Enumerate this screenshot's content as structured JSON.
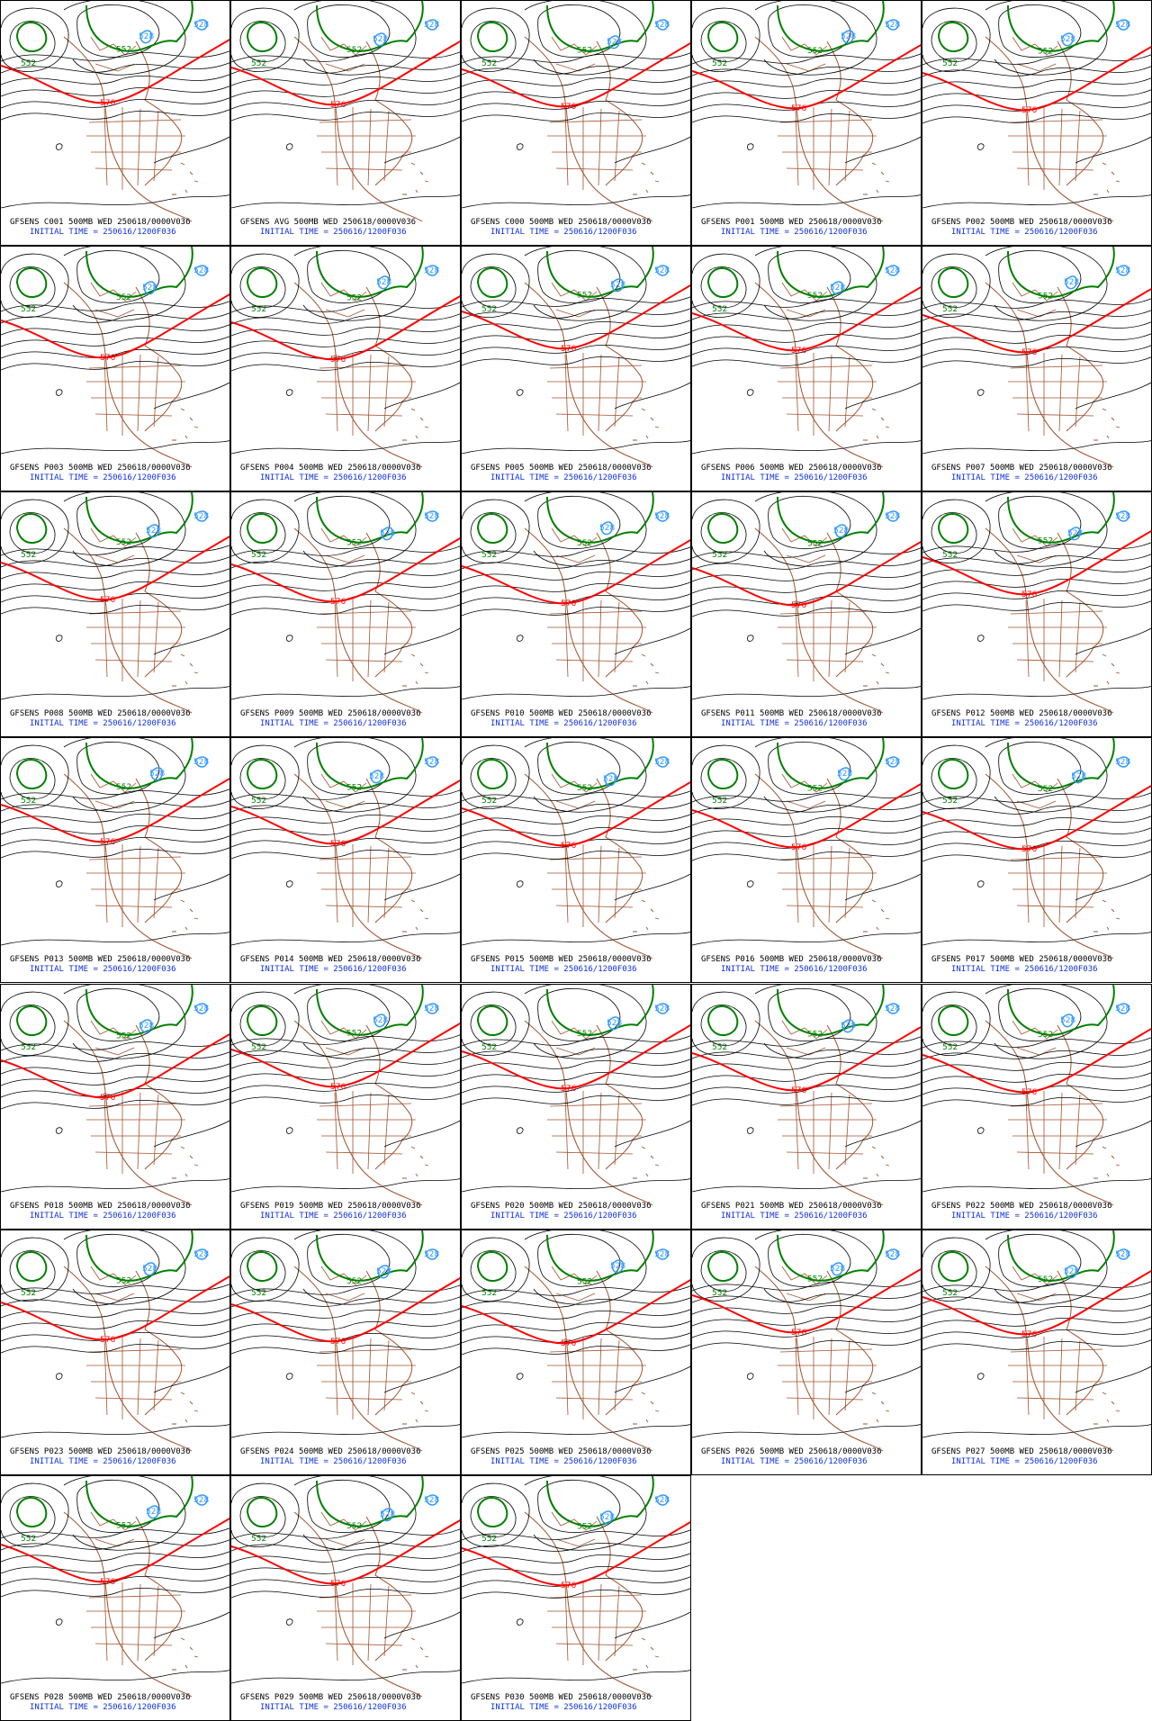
{
  "panels": [
    {
      "line1": "GFSENS C001 500MB WED 250618/0000V036",
      "line2": "INITIAL TIME = 250616/1200F036"
    },
    {
      "line1": "GFSENS AVG 500MB WED 250618/0000V036",
      "line2": "INITIAL TIME = 250616/1200F036"
    },
    {
      "line1": "GFSENS C000 500MB WED 250618/0000V036",
      "line2": "INITIAL TIME = 250616/1200F036"
    },
    {
      "line1": "GFSENS P001 500MB WED 250618/0000V036",
      "line2": "INITIAL TIME = 250616/1200F036"
    },
    {
      "line1": "GFSENS P002 500MB WED 250618/0000V036",
      "line2": "INITIAL TIME = 250616/1200F036"
    },
    {
      "line1": "GFSENS P003 500MB WED 250618/0000V036",
      "line2": "INITIAL TIME = 250616/1200F036"
    },
    {
      "line1": "GFSENS P004 500MB WED 250618/0000V036",
      "line2": "INITIAL TIME = 250616/1200F036"
    },
    {
      "line1": "GFSENS P005 500MB WED 250618/0000V036",
      "line2": "INITIAL TIME = 250616/1200F036"
    },
    {
      "line1": "GFSENS P006 500MB WED 250618/0000V036",
      "line2": "INITIAL TIME = 250616/1200F036"
    },
    {
      "line1": "GFSENS P007 500MB WED 250618/0000V036",
      "line2": "INITIAL TIME = 250616/1200F036"
    },
    {
      "line1": "GFSENS P008 500MB WED 250618/0000V036",
      "line2": "INITIAL TIME = 250616/1200F036"
    },
    {
      "line1": "GFSENS P009 500MB WED 250618/0000V036",
      "line2": "INITIAL TIME = 250616/1200F036"
    },
    {
      "line1": "GFSENS P010 500MB WED 250618/0000V036",
      "line2": "INITIAL TIME = 250616/1200F036"
    },
    {
      "line1": "GFSENS P011 500MB WED 250618/0000V036",
      "line2": "INITIAL TIME = 250616/1200F036"
    },
    {
      "line1": "GFSENS P012 500MB WED 250618/0000V036",
      "line2": "INITIAL TIME = 250616/1200F036"
    },
    {
      "line1": "GFSENS P013 500MB WED 250618/0000V036",
      "line2": "INITIAL TIME = 250616/1200F036"
    },
    {
      "line1": "GFSENS P014 500MB WED 250618/0000V036",
      "line2": "INITIAL TIME = 250616/1200F036"
    },
    {
      "line1": "GFSENS P015 500MB WED 250618/0000V036",
      "line2": "INITIAL TIME = 250616/1200F036"
    },
    {
      "line1": "GFSENS P016 500MB WED 250618/0000V036",
      "line2": "INITIAL TIME = 250616/1200F036"
    },
    {
      "line1": "GFSENS P017 500MB WED 250618/0000V036",
      "line2": "INITIAL TIME = 250616/1200F036"
    },
    {
      "line1": "GFSENS P018 500MB WED 250618/0000V036",
      "line2": "INITIAL TIME = 250616/1200F036"
    },
    {
      "line1": "GFSENS P019 500MB WED 250618/0000V036",
      "line2": "INITIAL TIME = 250616/1200F036"
    },
    {
      "line1": "GFSENS P020 500MB WED 250618/0000V036",
      "line2": "INITIAL TIME = 250616/1200F036"
    },
    {
      "line1": "GFSENS P021 500MB WED 250618/0000V036",
      "line2": "INITIAL TIME = 250616/1200F036"
    },
    {
      "line1": "GFSENS P022 500MB WED 250618/0000V036",
      "line2": "INITIAL TIME = 250616/1200F036"
    },
    {
      "line1": "GFSENS P023 500MB WED 250618/0000V036",
      "line2": "INITIAL TIME = 250616/1200F036"
    },
    {
      "line1": "GFSENS P024 500MB WED 250618/0000V036",
      "line2": "INITIAL TIME = 250616/1200F036"
    },
    {
      "line1": "GFSENS P025 500MB WED 250618/0000V036",
      "line2": "INITIAL TIME = 250616/1200F036"
    },
    {
      "line1": "GFSENS P026 500MB WED 250618/0000V036",
      "line2": "INITIAL TIME = 250616/1200F036"
    },
    {
      "line1": "GFSENS P027 500MB WED 250618/0000V036",
      "line2": "INITIAL TIME = 250616/1200F036"
    },
    {
      "line1": "GFSENS P028 500MB WED 250618/0000V036",
      "line2": "INITIAL TIME = 250616/1200F036"
    },
    {
      "line1": "GFSENS P029 500MB WED 250618/0000V036",
      "line2": "INITIAL TIME = 250616/1200F036"
    },
    {
      "line1": "GFSENS P030 500MB WED 250618/0000V036",
      "line2": "INITIAL TIME = 250616/1200F036"
    }
  ],
  "contour_labels": {
    "low": "552",
    "high": "576",
    "cutoff": "528"
  },
  "colors": {
    "contour": "#000000",
    "contour_552": "#008000",
    "contour_576": "#ff0000",
    "contour_528": "#3399ff",
    "map_boundaries": "#a0522d",
    "label_text": "#000000",
    "initial_time_text": "#1030e0"
  }
}
